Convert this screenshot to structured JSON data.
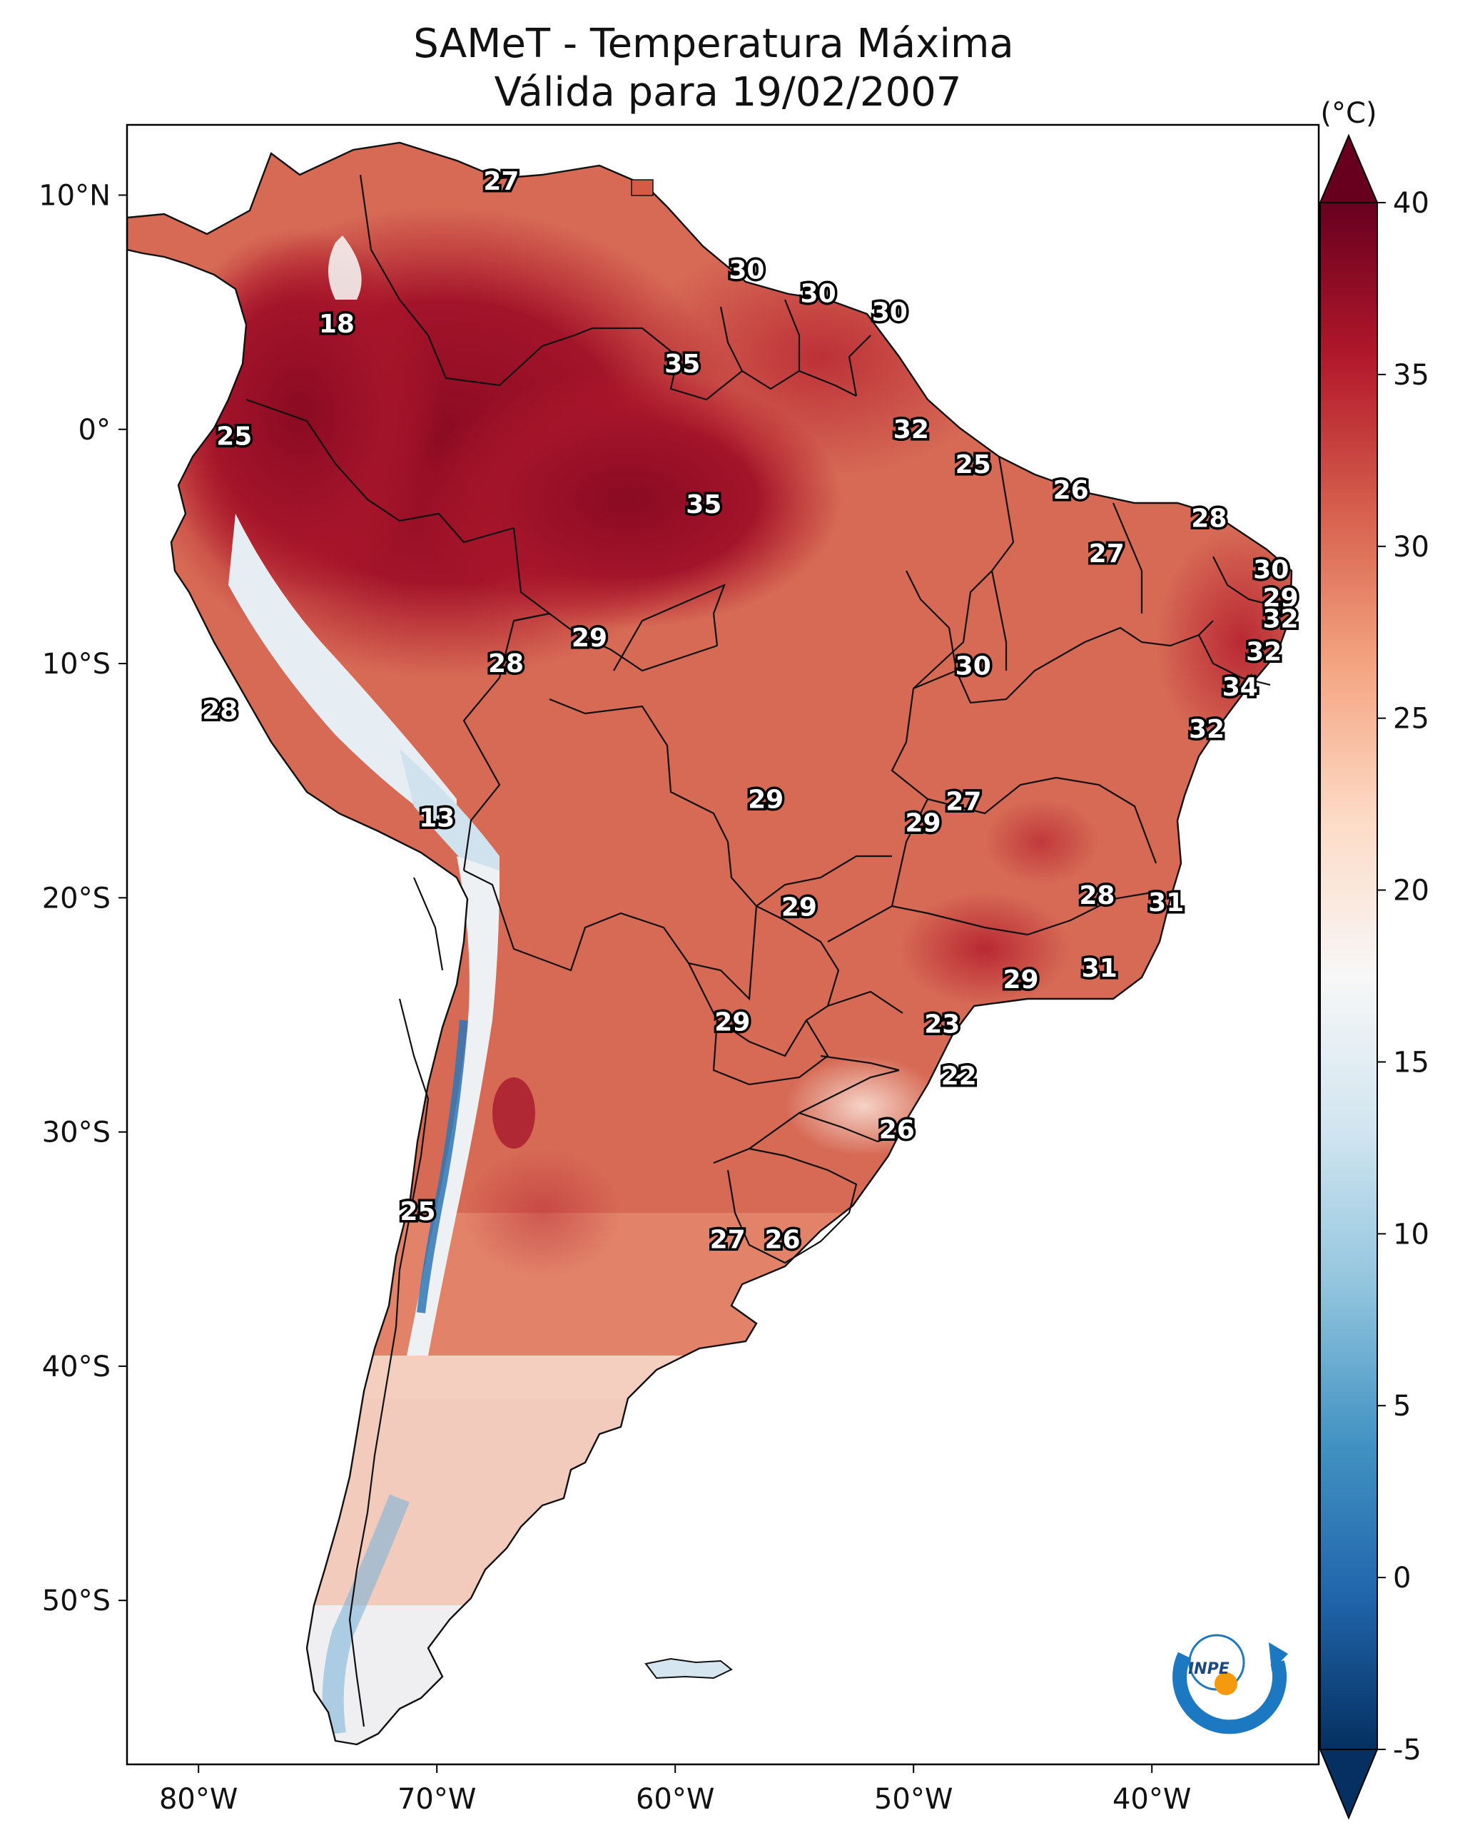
{
  "title": {
    "line1": "SAMeT - Temperatura Máxima",
    "line2": "Válida para 19/02/2007"
  },
  "map": {
    "lon_range": [
      -83,
      -33
    ],
    "lat_range": [
      -57,
      13
    ],
    "lat_ticks": [
      {
        "label": "10°N",
        "lat": 10
      },
      {
        "label": "0°",
        "lat": 0
      },
      {
        "label": "10°S",
        "lat": -10
      },
      {
        "label": "20°S",
        "lat": -20
      },
      {
        "label": "30°S",
        "lat": -30
      },
      {
        "label": "40°S",
        "lat": -40
      },
      {
        "label": "50°S",
        "lat": -50
      }
    ],
    "lon_ticks": [
      {
        "label": "80°W",
        "lon": -80
      },
      {
        "label": "70°W",
        "lon": -70
      },
      {
        "label": "60°W",
        "lon": -60
      },
      {
        "label": "50°W",
        "lon": -50
      },
      {
        "label": "40°W",
        "lon": -40
      }
    ],
    "labels": [
      {
        "text": "27",
        "lon": -67.3,
        "lat": 10.6
      },
      {
        "text": "18",
        "lon": -74.2,
        "lat": 4.5
      },
      {
        "text": "25",
        "lon": -78.5,
        "lat": -0.3
      },
      {
        "text": "28",
        "lon": -79.1,
        "lat": -12.0
      },
      {
        "text": "13",
        "lon": -70.0,
        "lat": -16.6
      },
      {
        "text": "25",
        "lon": -70.8,
        "lat": -33.4
      },
      {
        "text": "30",
        "lon": -57.0,
        "lat": 6.8
      },
      {
        "text": "30",
        "lon": -54.0,
        "lat": 5.8
      },
      {
        "text": "30",
        "lon": -51.0,
        "lat": 5.0
      },
      {
        "text": "35",
        "lon": -59.7,
        "lat": 2.8
      },
      {
        "text": "35",
        "lon": -58.8,
        "lat": -3.2
      },
      {
        "text": "32",
        "lon": -50.1,
        "lat": 0.0
      },
      {
        "text": "25",
        "lon": -47.5,
        "lat": -1.5
      },
      {
        "text": "26",
        "lon": -43.4,
        "lat": -2.6
      },
      {
        "text": "28",
        "lon": -37.6,
        "lat": -3.8
      },
      {
        "text": "27",
        "lon": -41.9,
        "lat": -5.3
      },
      {
        "text": "30",
        "lon": -35.0,
        "lat": -6.0
      },
      {
        "text": "29",
        "lon": -34.6,
        "lat": -7.2
      },
      {
        "text": "32",
        "lon": -34.6,
        "lat": -8.1
      },
      {
        "text": "29",
        "lon": -63.6,
        "lat": -8.9
      },
      {
        "text": "28",
        "lon": -67.1,
        "lat": -10.0
      },
      {
        "text": "30",
        "lon": -47.5,
        "lat": -10.1
      },
      {
        "text": "32",
        "lon": -35.3,
        "lat": -9.5
      },
      {
        "text": "34",
        "lon": -36.3,
        "lat": -11.0
      },
      {
        "text": "32",
        "lon": -37.7,
        "lat": -12.8
      },
      {
        "text": "29",
        "lon": -56.2,
        "lat": -15.8
      },
      {
        "text": "27",
        "lon": -47.9,
        "lat": -15.9
      },
      {
        "text": "29",
        "lon": -49.6,
        "lat": -16.8
      },
      {
        "text": "29",
        "lon": -54.8,
        "lat": -20.4
      },
      {
        "text": "28",
        "lon": -42.3,
        "lat": -19.9
      },
      {
        "text": "31",
        "lon": -39.4,
        "lat": -20.2
      },
      {
        "text": "31",
        "lon": -42.2,
        "lat": -23.0
      },
      {
        "text": "29",
        "lon": -45.5,
        "lat": -23.5
      },
      {
        "text": "29",
        "lon": -57.6,
        "lat": -25.3
      },
      {
        "text": "23",
        "lon": -48.8,
        "lat": -25.4
      },
      {
        "text": "22",
        "lon": -48.1,
        "lat": -27.6
      },
      {
        "text": "26",
        "lon": -50.7,
        "lat": -29.9
      },
      {
        "text": "27",
        "lon": -57.8,
        "lat": -34.6
      },
      {
        "text": "26",
        "lon": -55.5,
        "lat": -34.6
      }
    ]
  },
  "colorbar": {
    "unit": "(°C)",
    "min": -5,
    "max": 40,
    "ticks": [
      "40",
      "35",
      "30",
      "25",
      "20",
      "15",
      "10",
      "5",
      "0",
      "-5"
    ],
    "colors": [
      "#053061",
      "#2166ac",
      "#4393c3",
      "#92c5de",
      "#d1e5f0",
      "#f7f7f7",
      "#fddbc7",
      "#f4a582",
      "#d6604d",
      "#b2182b",
      "#67001f"
    ]
  },
  "logo": {
    "text": "INPE"
  }
}
